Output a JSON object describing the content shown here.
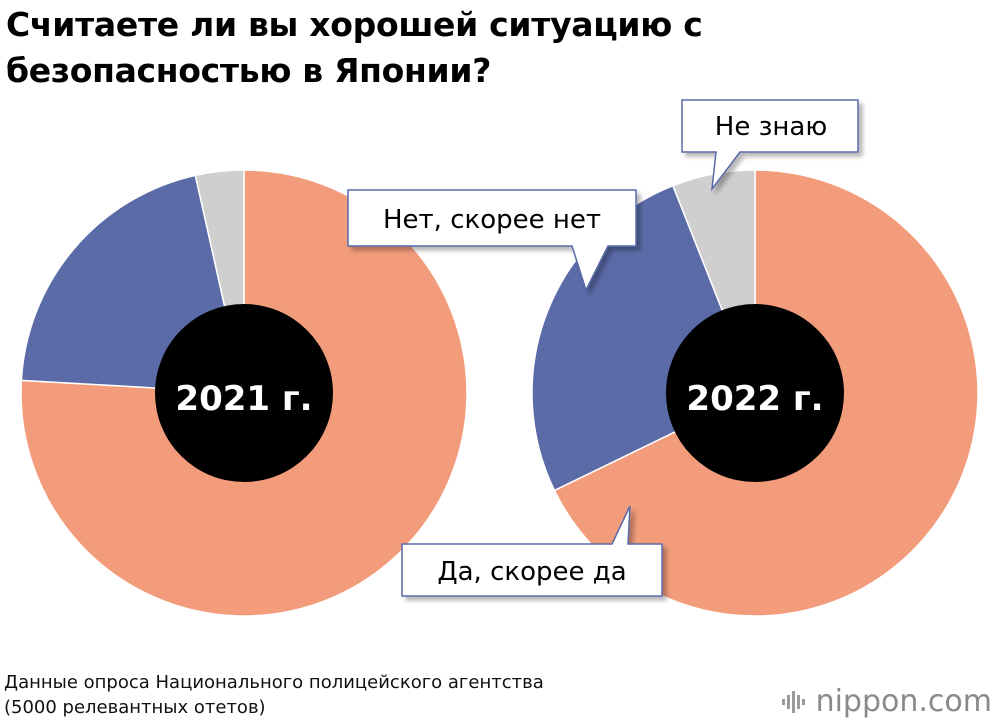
{
  "title": "Считаете ли вы хорошей ситуацию с безопасностью в Японии?",
  "source": {
    "line1": "Данные опроса Национального полицейского агентства",
    "line2": "(5000 релевантных отетов)"
  },
  "brand": {
    "name": "nippon",
    "suffix": ".com"
  },
  "colors": {
    "yes": "#F29C7B",
    "no": "#5A6BA8",
    "unknown": "#CFCFCF",
    "hole": "#000000",
    "callout_border": "#5A6BA8"
  },
  "chart_data": [
    {
      "type": "pie",
      "center_label": "2021 г.",
      "slices": [
        {
          "label": "Да, скорее да",
          "value": 75.9
        },
        {
          "label": "Нет, скорее нет",
          "value": 20.6
        },
        {
          "label": "Не знаю",
          "value": 3.5
        }
      ]
    },
    {
      "type": "pie",
      "center_label": "2022 г.",
      "slices": [
        {
          "label": "Да, скорее да",
          "value": 67.8
        },
        {
          "label": "Нет, скорее нет",
          "value": 26.2
        },
        {
          "label": "Не знаю",
          "value": 6.0
        }
      ],
      "callouts": [
        "Не знаю",
        "Нет, скорее нет",
        "Да, скорее да"
      ]
    }
  ]
}
